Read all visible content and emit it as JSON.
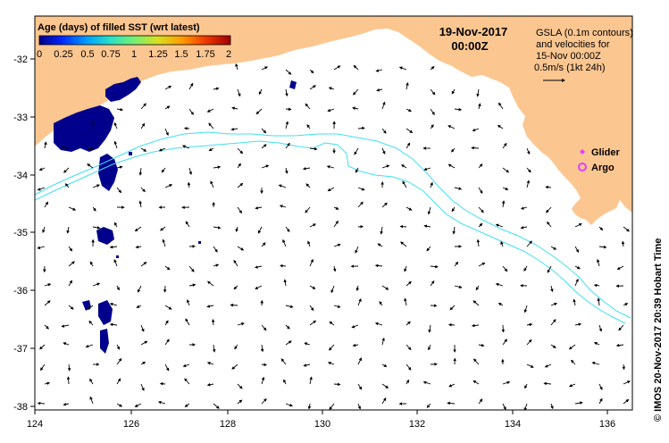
{
  "map": {
    "date_line": "19-Nov-2017",
    "time_line": "00:00Z",
    "colorbar": {
      "title": "Age (days) of filled SST (wrt latest)",
      "ticks": [
        "0",
        "0.25",
        "0.5",
        "0.75",
        "1",
        "1.25",
        "1.5",
        "1.75",
        "2"
      ],
      "colors": [
        "#00008c",
        "#0028ff",
        "#00a0ff",
        "#28e0c8",
        "#78f070",
        "#d8e020",
        "#ff9800",
        "#f03800",
        "#a00000"
      ]
    },
    "legend_text": {
      "line1": "GSLA (0.1m contours)",
      "line2": "and velocities for",
      "line3": "15-Nov 00:00Z",
      "line4": "0.5m/s (1kt 24h)"
    },
    "markers": {
      "glider_label": "Glider",
      "argo_label": "Argo",
      "glider_color": "#e040ff",
      "argo_color": "#e040ff"
    },
    "x_axis": {
      "ticks": [
        "124",
        "126",
        "128",
        "130",
        "132",
        "134",
        "136"
      ]
    },
    "y_axis": {
      "ticks": [
        "-32",
        "-33",
        "-34",
        "-35",
        "-36",
        "-37",
        "-38"
      ]
    },
    "credit": "© IMOS 20-Nov-2017 20:39 Hobart Time",
    "colors": {
      "land": "#fcc690",
      "ocean": "#ffffff",
      "contour": "#40e0f0",
      "sst_patch": "#00008c"
    }
  }
}
